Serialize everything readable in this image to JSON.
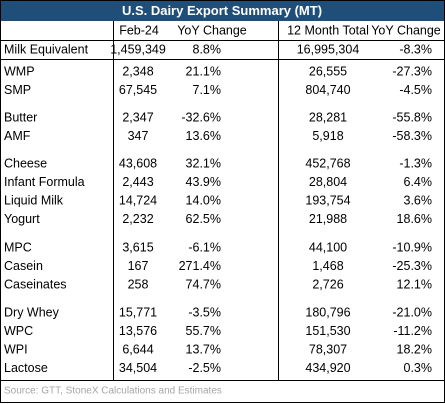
{
  "table": {
    "title": "U.S. Dairy Export Summary (MT)",
    "columns": [
      "Feb-24",
      "YoY Change",
      "12 Month Total",
      "YoY Change"
    ],
    "groups": [
      [
        [
          "Milk Equivalent",
          "1,459,349",
          "8.8%",
          "16,995,304",
          "-8.3%"
        ]
      ],
      [
        [
          "WMP",
          "2,348",
          "21.1%",
          "26,555",
          "-27.3%"
        ],
        [
          "SMP",
          "67,545",
          "7.1%",
          "804,740",
          "-4.5%"
        ]
      ],
      [
        [
          "Butter",
          "2,347",
          "-32.6%",
          "28,281",
          "-55.8%"
        ],
        [
          "AMF",
          "347",
          "13.6%",
          "5,918",
          "-58.3%"
        ]
      ],
      [
        [
          "Cheese",
          "43,608",
          "32.1%",
          "452,768",
          "-1.3%"
        ],
        [
          "Infant Formula",
          "2,443",
          "43.9%",
          "28,804",
          "6.4%"
        ],
        [
          "Liquid Milk",
          "14,724",
          "14.0%",
          "193,754",
          "3.6%"
        ],
        [
          "Yogurt",
          "2,232",
          "62.5%",
          "21,988",
          "18.6%"
        ]
      ],
      [
        [
          "MPC",
          "3,615",
          "-6.1%",
          "44,100",
          "-10.9%"
        ],
        [
          "Casein",
          "167",
          "271.4%",
          "1,468",
          "-25.3%"
        ],
        [
          "Caseinates",
          "258",
          "74.7%",
          "2,726",
          "12.1%"
        ]
      ],
      [
        [
          "Dry Whey",
          "15,771",
          "-3.5%",
          "180,796",
          "-21.0%"
        ],
        [
          "WPC",
          "13,576",
          "55.7%",
          "151,530",
          "-11.2%"
        ],
        [
          "WPI",
          "6,644",
          "13.7%",
          "78,307",
          "18.2%"
        ],
        [
          "Lactose",
          "34,504",
          "-2.5%",
          "434,920",
          "0.3%"
        ]
      ]
    ],
    "source": "Source: GTT, StoneX Calculations and Estimates"
  }
}
